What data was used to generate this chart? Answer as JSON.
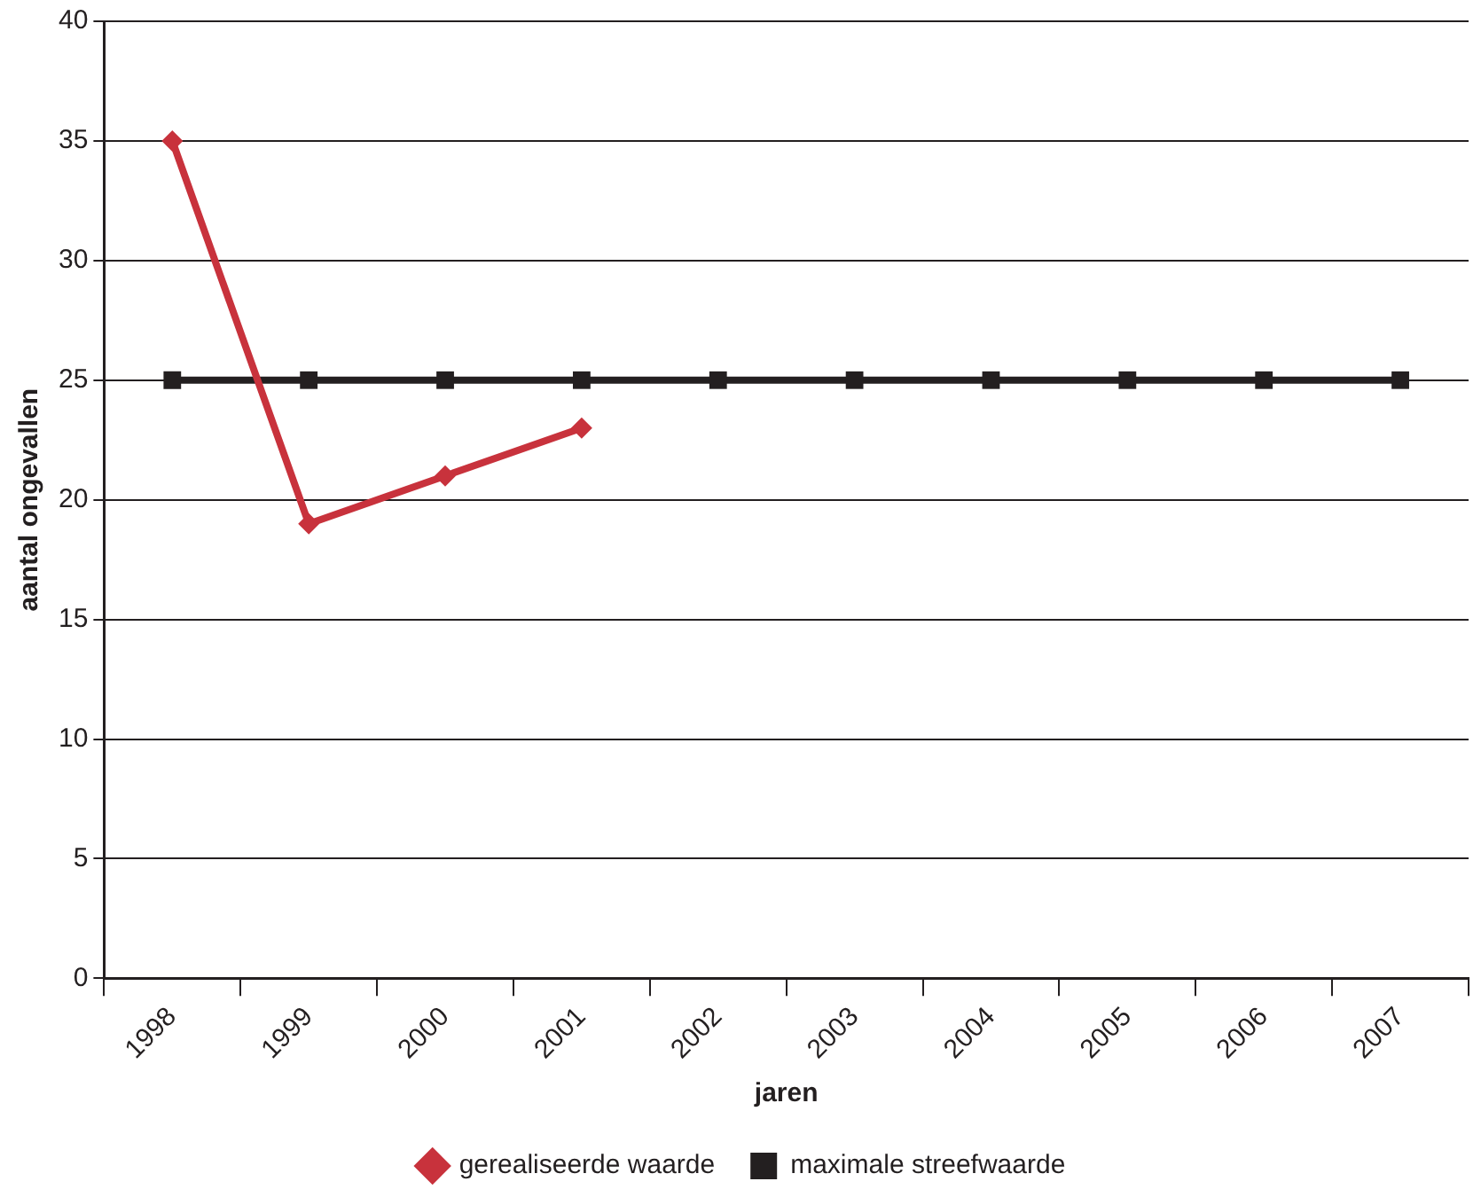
{
  "chart_data": {
    "type": "line",
    "xlabel": "jaren",
    "ylabel": "aantal ongevallen",
    "categories": [
      "1998",
      "1999",
      "2000",
      "2001",
      "2002",
      "2003",
      "2004",
      "2005",
      "2006",
      "2007"
    ],
    "series": [
      {
        "name": "gerealiseerde waarde",
        "color": "#c8323c",
        "marker": "diamond",
        "values": [
          35,
          19,
          21,
          23,
          null,
          null,
          null,
          null,
          null,
          null
        ]
      },
      {
        "name": "maximale streefwaarde",
        "color": "#231f20",
        "marker": "square",
        "values": [
          25,
          25,
          25,
          25,
          25,
          25,
          25,
          25,
          25,
          25
        ]
      }
    ],
    "ylim": [
      0,
      40
    ],
    "yticks": [
      0,
      5,
      10,
      15,
      20,
      25,
      30,
      35,
      40
    ],
    "grid": "y",
    "legend": "bottom",
    "line_style": "solid"
  }
}
